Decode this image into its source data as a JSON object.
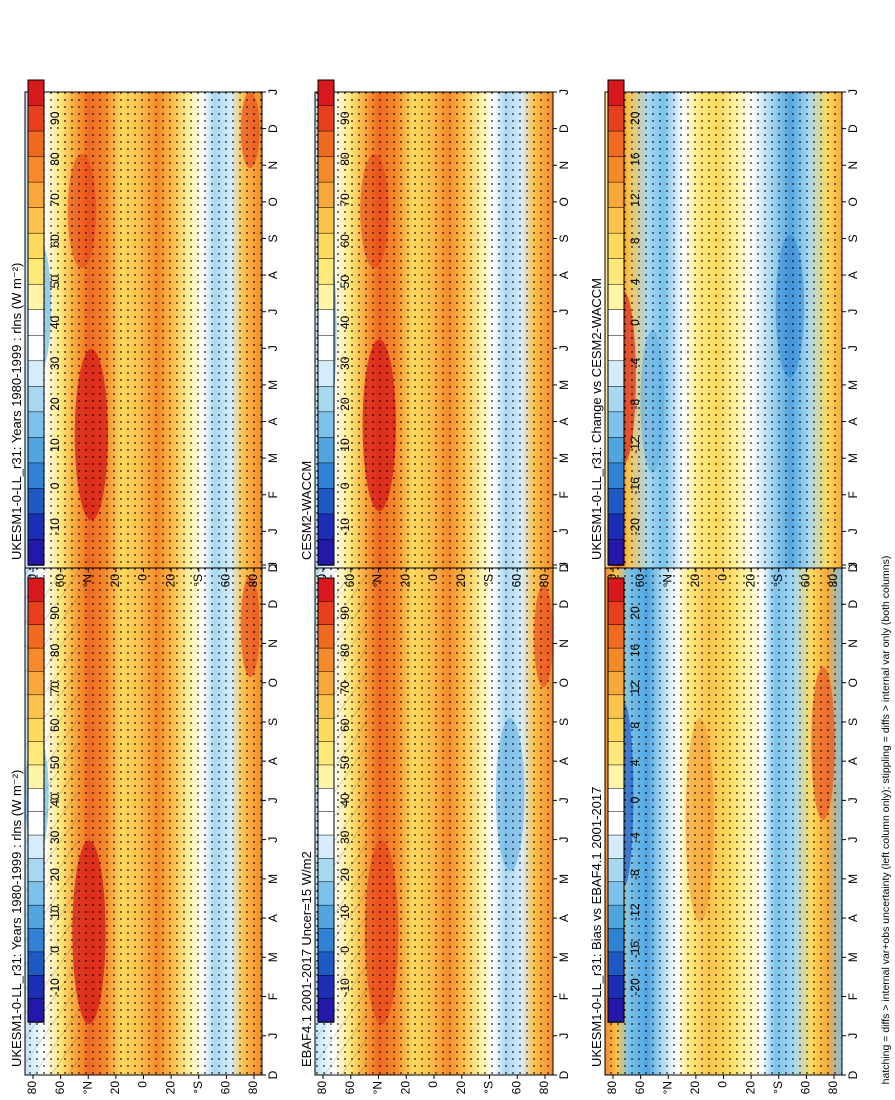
{
  "footnote": "hatching = diffs > internal var+obs uncertainty (left column only); stippling = diffs > internal var only (both columns)",
  "colors": {
    "abs_scale": [
      "#d7191c",
      "#e8401c",
      "#f06a20",
      "#f48a2a",
      "#f8a83a",
      "#fbc24c",
      "#fdd95e",
      "#fee87a",
      "#fff4a8",
      "#ffffff",
      "#ffffff",
      "#d6ecfa",
      "#a8d8f0",
      "#7cc2ea",
      "#52a6e0",
      "#2f82d4",
      "#1f5ac4",
      "#1c2fb4",
      "#2318a8"
    ],
    "diff_scale": [
      "#d7191c",
      "#e8401c",
      "#f06a20",
      "#f48a2a",
      "#f8a83a",
      "#fbc24c",
      "#fdd95e",
      "#fee87a",
      "#fff4a8",
      "#ffffff",
      "#ffffff",
      "#d6ecfa",
      "#a8d8f0",
      "#7cc2ea",
      "#52a6e0",
      "#2f82d4",
      "#1f5ac4",
      "#1c2fb4",
      "#2318a8"
    ]
  },
  "chart_data": [
    {
      "type": "heatmap",
      "id": "p1",
      "title": "UKESM1-0-LL_r31: Years 1980-1999 : rlns (W m⁻²)",
      "x_ticks": [
        "D",
        "J",
        "F",
        "M",
        "A",
        "M",
        "J",
        "J",
        "A",
        "S",
        "O",
        "N",
        "D",
        "J"
      ],
      "y_ticks": [
        "80",
        "60",
        "°N",
        "20",
        "0",
        "20",
        "°S",
        "60",
        "80"
      ],
      "colorbar_ticks": [
        "90",
        "80",
        "70",
        "60",
        "50",
        "40",
        "30",
        "20",
        "10",
        "0",
        "-10"
      ]
    },
    {
      "type": "heatmap",
      "id": "p2",
      "title": "UKESM1-0-LL_r31: Years 1980-1999 : rlns (W m⁻²)",
      "x_ticks": [
        "D",
        "J",
        "F",
        "M",
        "A",
        "M",
        "J",
        "J",
        "A",
        "S",
        "O",
        "N",
        "D",
        "J"
      ],
      "y_ticks": [
        "80",
        "60",
        "°N",
        "20",
        "0",
        "20",
        "°S",
        "60",
        "80"
      ],
      "colorbar_ticks": [
        "90",
        "80",
        "70",
        "60",
        "50",
        "40",
        "30",
        "20",
        "10",
        "0",
        "-10"
      ]
    },
    {
      "type": "heatmap",
      "id": "p3",
      "title": "EBAF4.1 2001-2017 Uncer=15 W/m2",
      "x_ticks": [
        "D",
        "J",
        "F",
        "M",
        "A",
        "M",
        "J",
        "J",
        "A",
        "S",
        "O",
        "N",
        "D",
        "J"
      ],
      "y_ticks": [
        "80",
        "60",
        "°N",
        "20",
        "0",
        "20",
        "°S",
        "60",
        "80"
      ],
      "colorbar_ticks": [
        "90",
        "80",
        "70",
        "60",
        "50",
        "40",
        "30",
        "20",
        "10",
        "0",
        "-10"
      ]
    },
    {
      "type": "heatmap",
      "id": "p4",
      "title": "CESM2-WACCM",
      "x_ticks": [
        "D",
        "J",
        "F",
        "M",
        "A",
        "M",
        "J",
        "J",
        "A",
        "S",
        "O",
        "N",
        "D",
        "J"
      ],
      "y_ticks": [
        "80",
        "60",
        "°N",
        "20",
        "0",
        "20",
        "°S",
        "60",
        "80"
      ],
      "colorbar_ticks": [
        "90",
        "80",
        "70",
        "60",
        "50",
        "40",
        "30",
        "20",
        "10",
        "0",
        "-10"
      ]
    },
    {
      "type": "heatmap",
      "id": "p5",
      "title": "UKESM1-0-LL_r31: Bias vs EBAF4.1 2001-2017",
      "x_ticks": [
        "D",
        "J",
        "F",
        "M",
        "A",
        "M",
        "J",
        "J",
        "A",
        "S",
        "O",
        "N",
        "D",
        "J"
      ],
      "y_ticks": [
        "80",
        "60",
        "°N",
        "20",
        "0",
        "20",
        "°S",
        "60",
        "80"
      ],
      "colorbar_ticks": [
        "20",
        "16",
        "12",
        "8",
        "4",
        "0",
        "-4",
        "-8",
        "-12",
        "-16",
        "-20"
      ]
    },
    {
      "type": "heatmap",
      "id": "p6",
      "title": "UKESM1-0-LL_r31: Change vs CESM2-WACCM",
      "x_ticks": [
        "D",
        "J",
        "F",
        "M",
        "A",
        "M",
        "J",
        "J",
        "A",
        "S",
        "O",
        "N",
        "D",
        "J"
      ],
      "y_ticks": [
        "80",
        "60",
        "°N",
        "20",
        "0",
        "20",
        "°S",
        "60",
        "80"
      ],
      "colorbar_ticks": [
        "20",
        "16",
        "12",
        "8",
        "4",
        "0",
        "-4",
        "-8",
        "-12",
        "-16",
        "-20"
      ]
    }
  ]
}
